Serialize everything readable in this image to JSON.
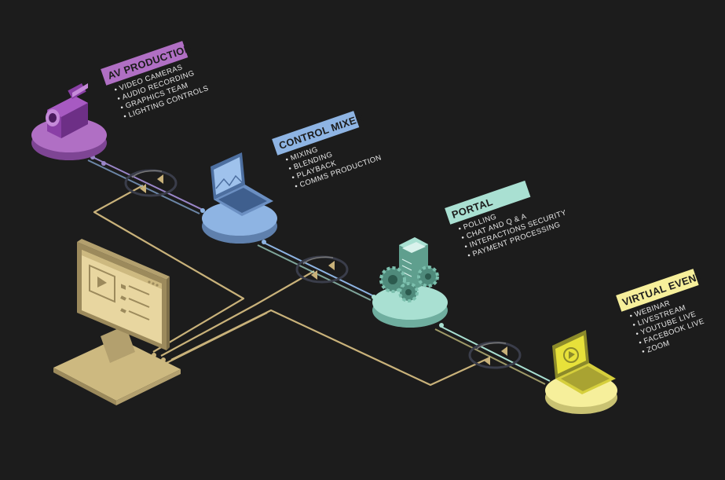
{
  "colors": {
    "background": "#1c1c1c",
    "av_production": "#b06fc4",
    "control_mixer": "#8eb4e3",
    "portal": "#a9e0d2",
    "virtual_event": "#f6ef9b",
    "connector": "#c9b27a"
  },
  "nodes": [
    {
      "id": "av-production",
      "title": "AV PRODUCTION",
      "icon": "video-camera-icon",
      "items": [
        "VIDEO CAMERAS",
        "AUDIO RECORDING",
        "GRAPHICS TEAM",
        "LIGHTING CONTROLS"
      ]
    },
    {
      "id": "control-mixer",
      "title": "CONTROL MIXER",
      "icon": "laptop-icon",
      "items": [
        "MIXING",
        "BLENDING",
        "PLAYBACK",
        "COMMS PRODUCTION"
      ]
    },
    {
      "id": "portal",
      "title": "PORTAL",
      "icon": "server-gears-icon",
      "items": [
        "POLLING",
        "CHAT AND Q & A",
        "INTERACTIONS SECURITY",
        "PAYMENT PROCESSING"
      ]
    },
    {
      "id": "virtual-event",
      "title": "VIRTUAL EVENT",
      "icon": "laptop-play-icon",
      "items": [
        "WEBINAR",
        "LIVESTREAM",
        "YOUTUBE LIVE",
        "FACEBOOK LIVE",
        "ZOOM"
      ]
    }
  ],
  "monitor": {
    "icon": "monitor-video-icon"
  }
}
